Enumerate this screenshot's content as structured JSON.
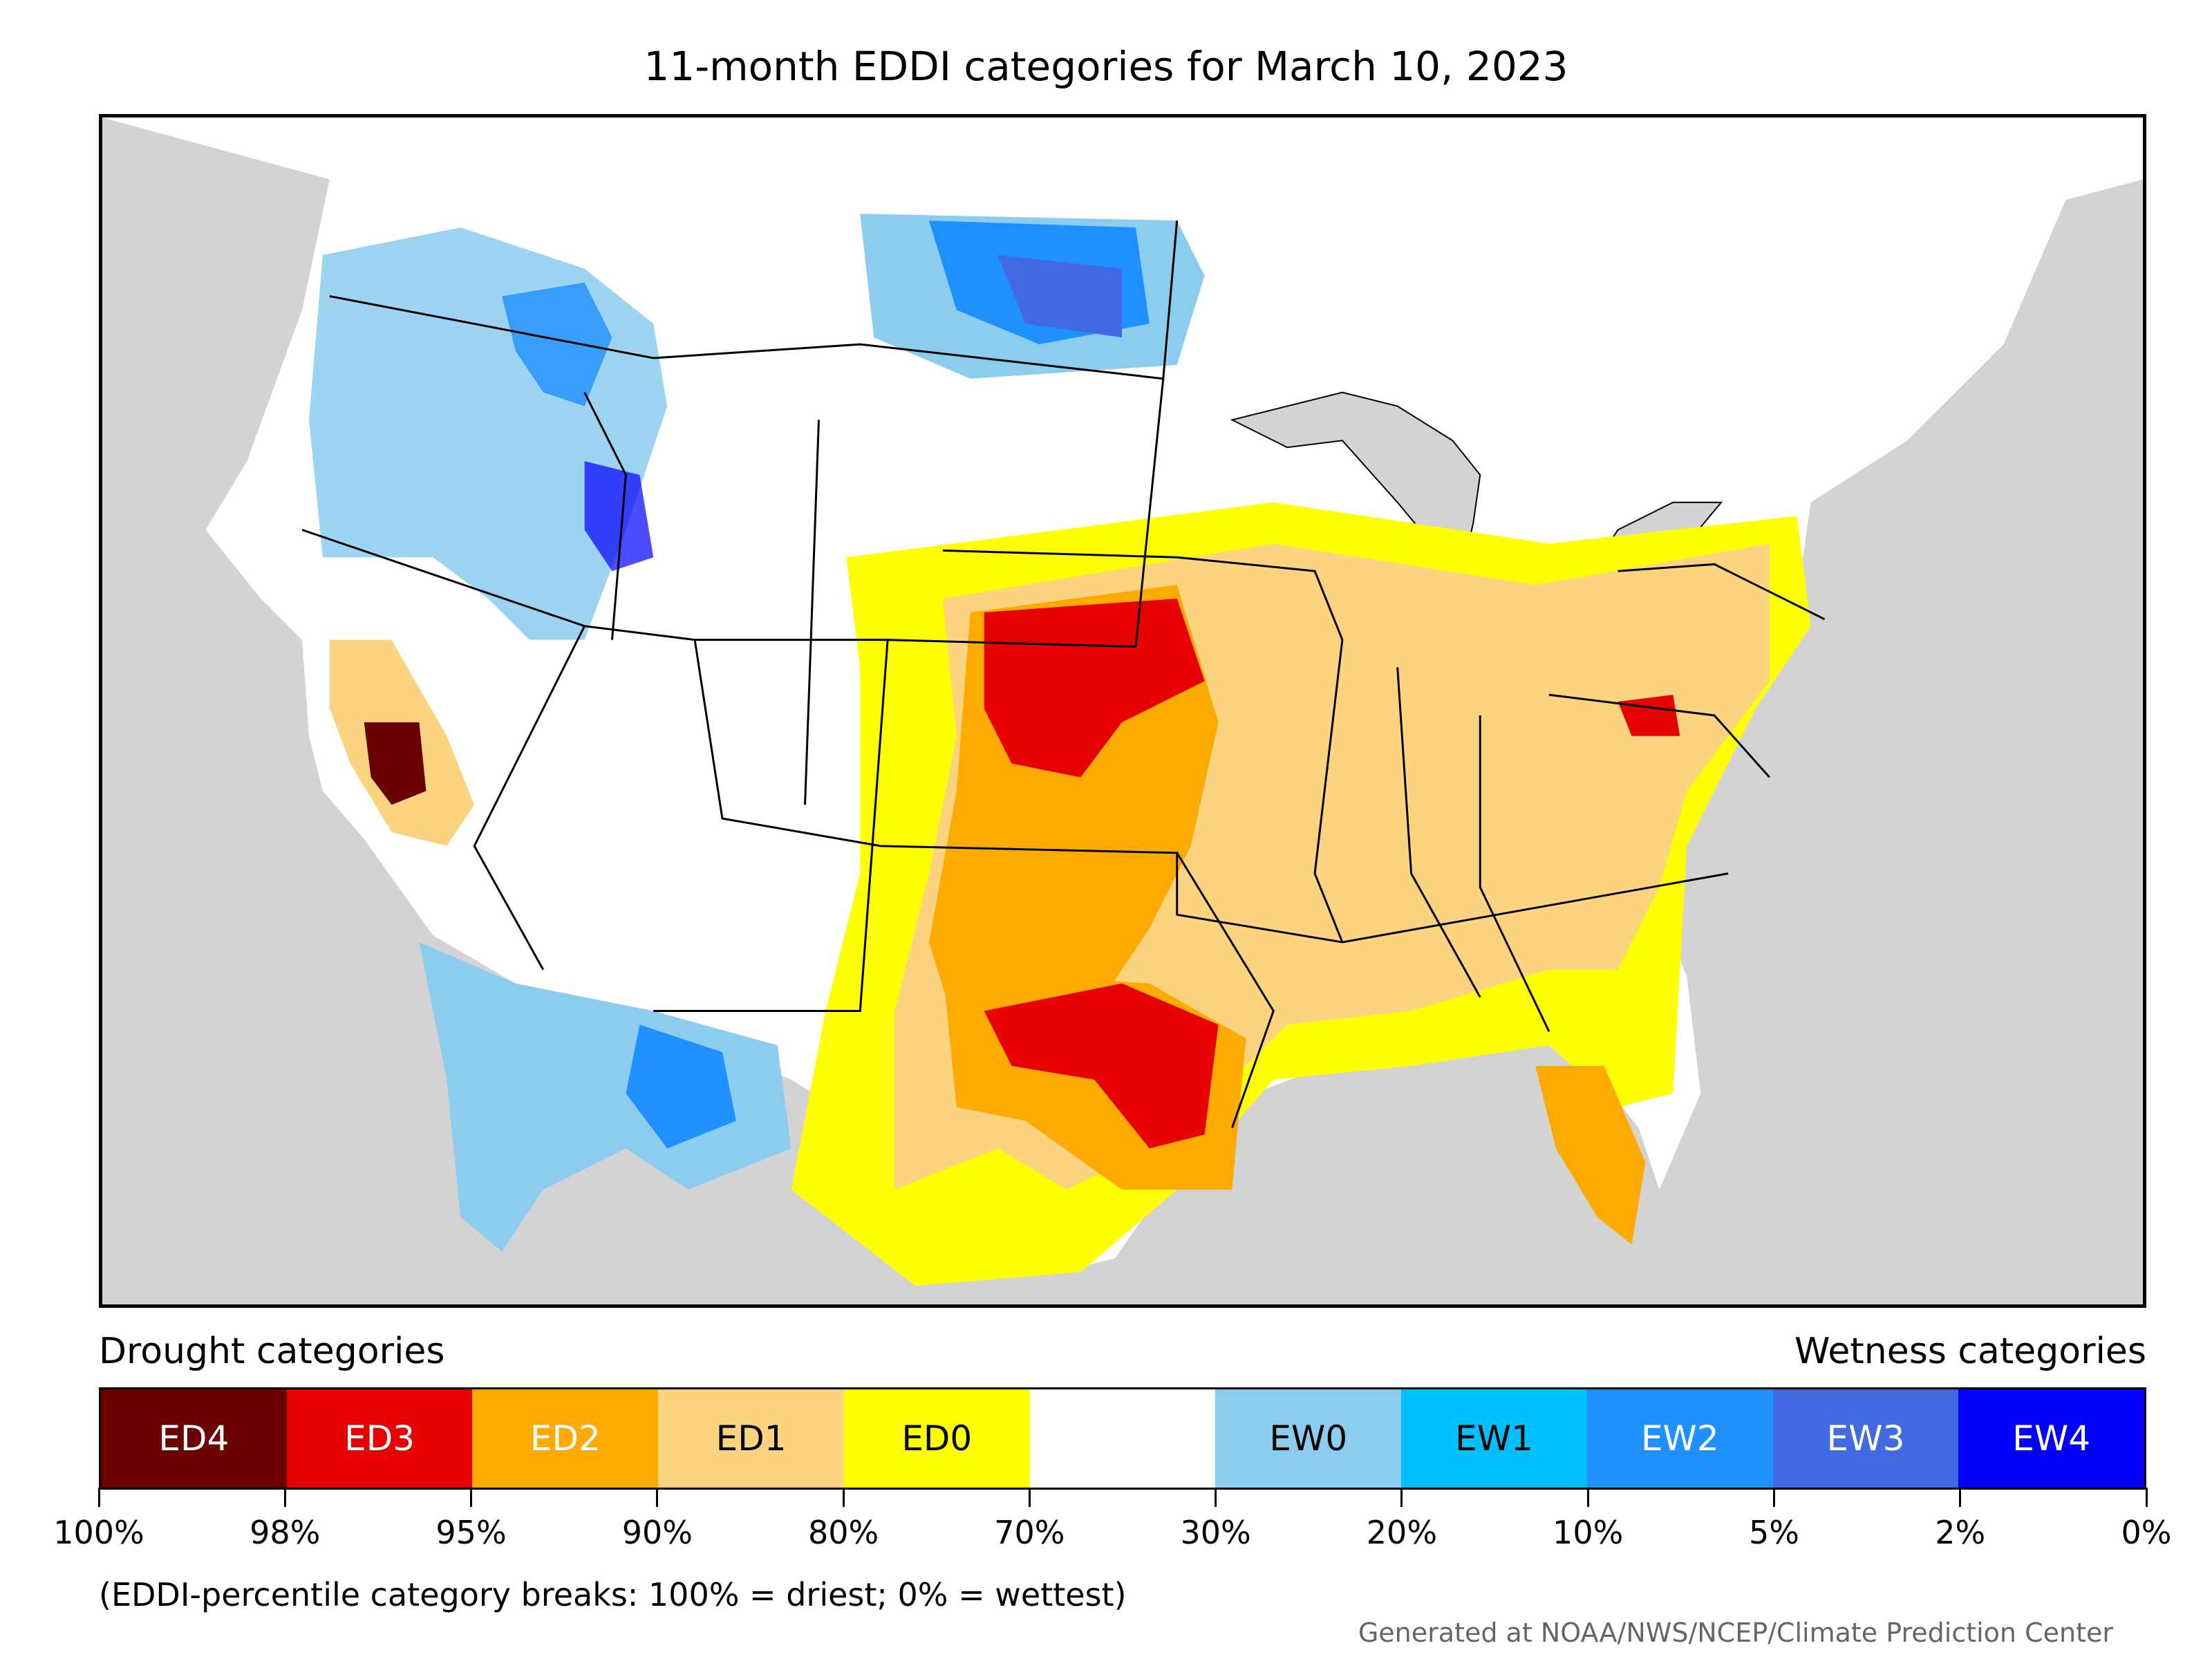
{
  "title": "11-month EDDI categories for March 10, 2023",
  "legend": {
    "left_label": "Drought categories",
    "right_label": "Wetness categories",
    "categories": [
      {
        "label": "ED4",
        "color": "#6b0000",
        "text_color": "#ffffff"
      },
      {
        "label": "ED3",
        "color": "#e60000",
        "text_color": "#ffffff"
      },
      {
        "label": "ED2",
        "color": "#ffaa00",
        "text_color": "#ffffff"
      },
      {
        "label": "ED1",
        "color": "#fcd37f",
        "text_color": "#000000"
      },
      {
        "label": "ED0",
        "color": "#ffff00",
        "text_color": "#000000"
      },
      {
        "label": "",
        "color": "#ffffff",
        "text_color": "#000000"
      },
      {
        "label": "EW0",
        "color": "#8ccdef",
        "text_color": "#000000"
      },
      {
        "label": "EW1",
        "color": "#00bfff",
        "text_color": "#000000"
      },
      {
        "label": "EW2",
        "color": "#1e90ff",
        "text_color": "#ffffff"
      },
      {
        "label": "EW3",
        "color": "#4169e1",
        "text_color": "#ffffff"
      },
      {
        "label": "EW4",
        "color": "#0000ff",
        "text_color": "#ffffff"
      }
    ],
    "tick_labels": [
      "100%",
      "98%",
      "95%",
      "90%",
      "80%",
      "70%",
      "30%",
      "20%",
      "10%",
      "5%",
      "2%",
      "0%"
    ]
  },
  "note": "(EDDI-percentile category breaks: 100% = driest; 0% = wettest)",
  "credit": "Generated at NOAA/NWS/NCEP/Climate Prediction Center"
}
